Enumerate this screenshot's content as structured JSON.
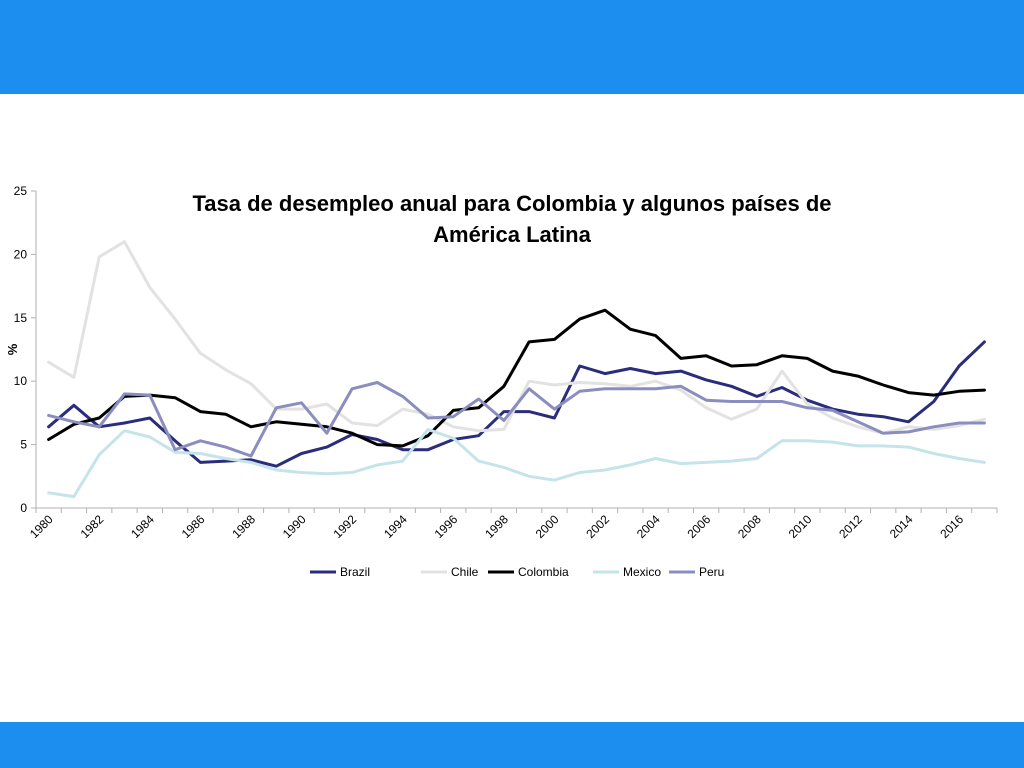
{
  "chart_data": {
    "type": "line",
    "title_lines": [
      "Tasa de desempleo anual para Colombia y algunos países de",
      "América Latina"
    ],
    "ylabel": "%",
    "xlabel": "",
    "ylim": [
      0,
      25
    ],
    "yticks": [
      0,
      5,
      10,
      15,
      20,
      25
    ],
    "x": [
      1980,
      1981,
      1982,
      1983,
      1984,
      1985,
      1986,
      1987,
      1988,
      1989,
      1990,
      1991,
      1992,
      1993,
      1994,
      1995,
      1996,
      1997,
      1998,
      1999,
      2000,
      2001,
      2002,
      2003,
      2004,
      2005,
      2006,
      2007,
      2008,
      2009,
      2010,
      2011,
      2012,
      2013,
      2014,
      2015,
      2016,
      2017
    ],
    "xtick_labels": [
      "1980",
      "1982",
      "1984",
      "1986",
      "1988",
      "1990",
      "1992",
      "1994",
      "1996",
      "1998",
      "2000",
      "2002",
      "2004",
      "2006",
      "2008",
      "2010",
      "2012",
      "2014",
      "2016"
    ],
    "grid": false,
    "legend_position": "bottom",
    "series": [
      {
        "name": "Brazil",
        "color": "#2b2d7c",
        "values": [
          6.4,
          8.1,
          6.4,
          6.7,
          7.1,
          5.3,
          3.6,
          3.7,
          3.8,
          3.3,
          4.3,
          4.8,
          5.8,
          5.4,
          4.6,
          4.6,
          5.4,
          5.7,
          7.6,
          7.6,
          7.1,
          11.2,
          10.6,
          11.0,
          10.6,
          10.8,
          10.1,
          9.6,
          8.8,
          9.5,
          8.5,
          7.8,
          7.4,
          7.2,
          6.8,
          8.4,
          11.2,
          13.1
        ]
      },
      {
        "name": "Chile",
        "color": "#e2e2e2",
        "values": [
          11.5,
          10.3,
          19.8,
          21.0,
          17.4,
          14.9,
          12.2,
          10.9,
          9.8,
          7.8,
          7.8,
          8.2,
          6.7,
          6.5,
          7.8,
          7.4,
          6.4,
          6.1,
          6.2,
          10.0,
          9.7,
          9.9,
          9.8,
          9.6,
          10.0,
          9.3,
          7.9,
          7.0,
          7.8,
          10.8,
          8.2,
          7.1,
          6.4,
          5.9,
          6.4,
          6.2,
          6.5,
          7.0
        ]
      },
      {
        "name": "Colombia",
        "color": "#000000",
        "values": [
          5.4,
          6.6,
          7.1,
          8.8,
          8.9,
          8.7,
          7.6,
          7.4,
          6.4,
          6.8,
          6.6,
          6.4,
          5.9,
          5.0,
          4.9,
          5.7,
          7.7,
          7.9,
          9.6,
          13.1,
          13.3,
          14.9,
          15.6,
          14.1,
          13.6,
          11.8,
          12.0,
          11.2,
          11.3,
          12.0,
          11.8,
          10.8,
          10.4,
          9.7,
          9.1,
          8.9,
          9.2,
          9.3
        ]
      },
      {
        "name": "Mexico",
        "color": "#c5e4ea",
        "values": [
          1.2,
          0.9,
          4.2,
          6.1,
          5.6,
          4.4,
          4.3,
          3.9,
          3.6,
          3.0,
          2.8,
          2.7,
          2.8,
          3.4,
          3.7,
          6.2,
          5.5,
          3.7,
          3.2,
          2.5,
          2.2,
          2.8,
          3.0,
          3.4,
          3.9,
          3.5,
          3.6,
          3.7,
          3.9,
          5.3,
          5.3,
          5.2,
          4.9,
          4.9,
          4.8,
          4.3,
          3.9,
          3.6
        ]
      },
      {
        "name": "Peru",
        "color": "#8b8dbf",
        "values": [
          7.3,
          6.8,
          6.4,
          9.0,
          8.9,
          4.6,
          5.3,
          4.8,
          4.1,
          7.9,
          8.3,
          5.9,
          9.4,
          9.9,
          8.8,
          7.1,
          7.2,
          8.6,
          6.9,
          9.4,
          7.8,
          9.2,
          9.4,
          9.4,
          9.4,
          9.6,
          8.5,
          8.4,
          8.4,
          8.4,
          7.9,
          7.7,
          6.8,
          5.9,
          6.0,
          6.4,
          6.7,
          6.7
        ]
      }
    ]
  }
}
